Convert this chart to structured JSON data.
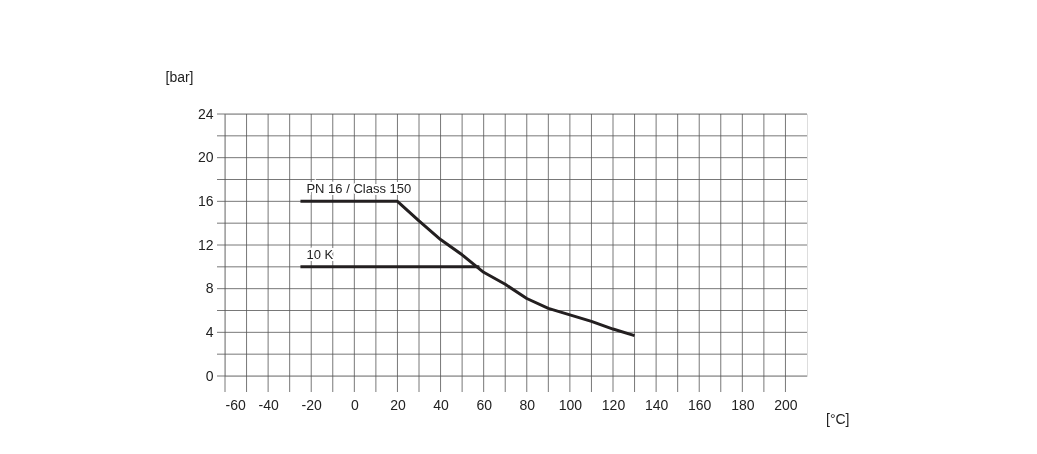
{
  "chart_data": {
    "type": "line",
    "xlabel": "[°C]",
    "ylabel": "[bar]",
    "xlim": [
      -60,
      210
    ],
    "ylim": [
      0,
      24
    ],
    "xticks": [
      -60,
      {
        "value": -50,
        "label": null
      },
      -40,
      {
        "value": -30,
        "label": null
      },
      -20,
      {
        "value": -10,
        "label": null
      },
      0,
      {
        "value": 10,
        "label": null
      },
      20,
      {
        "value": 30,
        "label": null
      },
      40,
      {
        "value": 50,
        "label": null
      },
      60,
      {
        "value": 70,
        "label": null
      },
      80,
      {
        "value": 90,
        "label": null
      },
      100,
      {
        "value": 110,
        "label": null
      },
      120,
      {
        "value": 130,
        "label": null
      },
      140,
      {
        "value": 150,
        "label": null
      },
      160,
      {
        "value": 170,
        "label": null
      },
      180,
      {
        "value": 190,
        "label": null
      },
      200
    ],
    "yticks": [
      0,
      {
        "value": 2,
        "label": null
      },
      4,
      {
        "value": 6,
        "label": null
      },
      8,
      {
        "value": 10,
        "label": null
      },
      12,
      {
        "value": 14,
        "label": null
      },
      16,
      {
        "value": 18,
        "label": null
      },
      20,
      {
        "value": 22,
        "label": null
      },
      24
    ],
    "grid": true,
    "legend": false,
    "marker": "none",
    "line_style": "solid",
    "series": [
      {
        "name": "PN 16 / Class 150",
        "color": "#231f20",
        "x": [
          -25,
          20,
          30,
          40,
          50,
          60,
          70,
          80,
          90,
          100,
          110,
          120,
          130
        ],
        "values": [
          16,
          16,
          14.2,
          12.5,
          11.1,
          9.5,
          8.4,
          7.1,
          6.2,
          5.6,
          5.0,
          4.3,
          3.7
        ]
      },
      {
        "name": "10 K",
        "color": "#231f20",
        "x": [
          -25,
          58
        ],
        "values": [
          10,
          10
        ]
      }
    ]
  }
}
